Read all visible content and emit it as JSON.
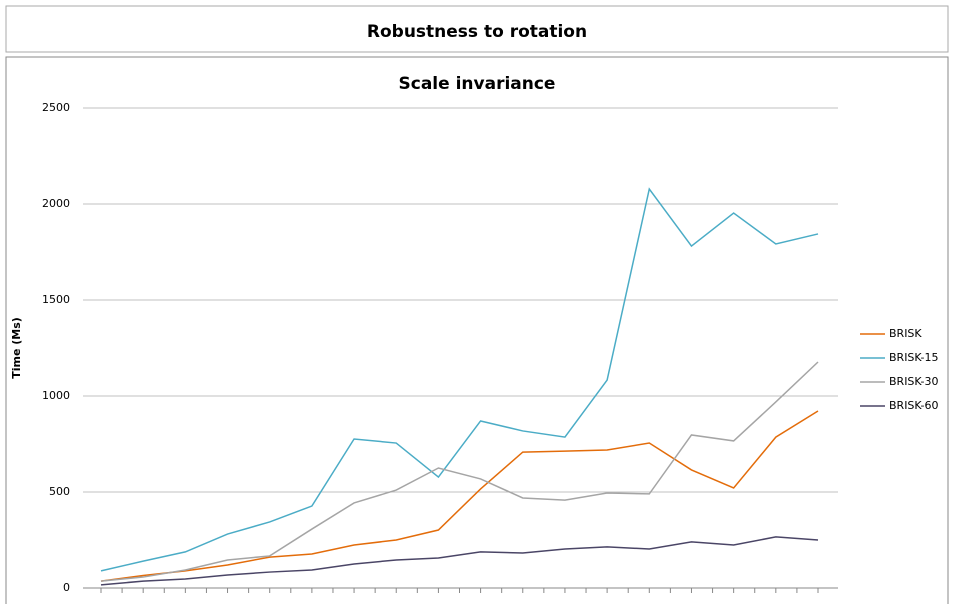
{
  "header": {
    "title": "Robustness to rotation"
  },
  "chart_data": {
    "type": "line",
    "title": "Scale invariance",
    "y_label": "Time (Ms)",
    "categories": [
      null,
      null,
      null,
      null,
      null,
      null,
      null,
      null,
      null,
      null,
      null,
      null,
      null,
      null,
      null,
      null,
      null,
      null
    ],
    "series": [
      {
        "name": "BRISK",
        "color": "#e36c0a",
        "values": [
          36,
          65,
          89,
          120,
          161,
          177,
          224,
          250,
          302,
          516,
          708,
          713,
          719,
          755,
          615,
          521,
          786,
          922
        ]
      },
      {
        "name": "BRISK-15",
        "color": "#4bacc6",
        "values": [
          89,
          140,
          188,
          281,
          344,
          427,
          776,
          755,
          578,
          870,
          818,
          786,
          1083,
          2078,
          1781,
          1953,
          1792,
          1844
        ]
      },
      {
        "name": "BRISK-30",
        "color": "#a5a5a5",
        "values": [
          36,
          57,
          94,
          146,
          167,
          307,
          443,
          510,
          625,
          568,
          469,
          458,
          495,
          490,
          797,
          766,
          969,
          1177
        ]
      },
      {
        "name": "BRISK-60",
        "color": "#4a4566",
        "values": [
          16,
          36,
          47,
          68,
          83,
          94,
          125,
          146,
          156,
          188,
          182,
          203,
          214,
          203,
          240,
          224,
          266,
          250
        ]
      }
    ],
    "ylim": [
      0,
      2500
    ],
    "yticks": [
      0,
      500,
      1000,
      1500,
      2000,
      2500
    ],
    "grid": true,
    "legend": "right"
  }
}
